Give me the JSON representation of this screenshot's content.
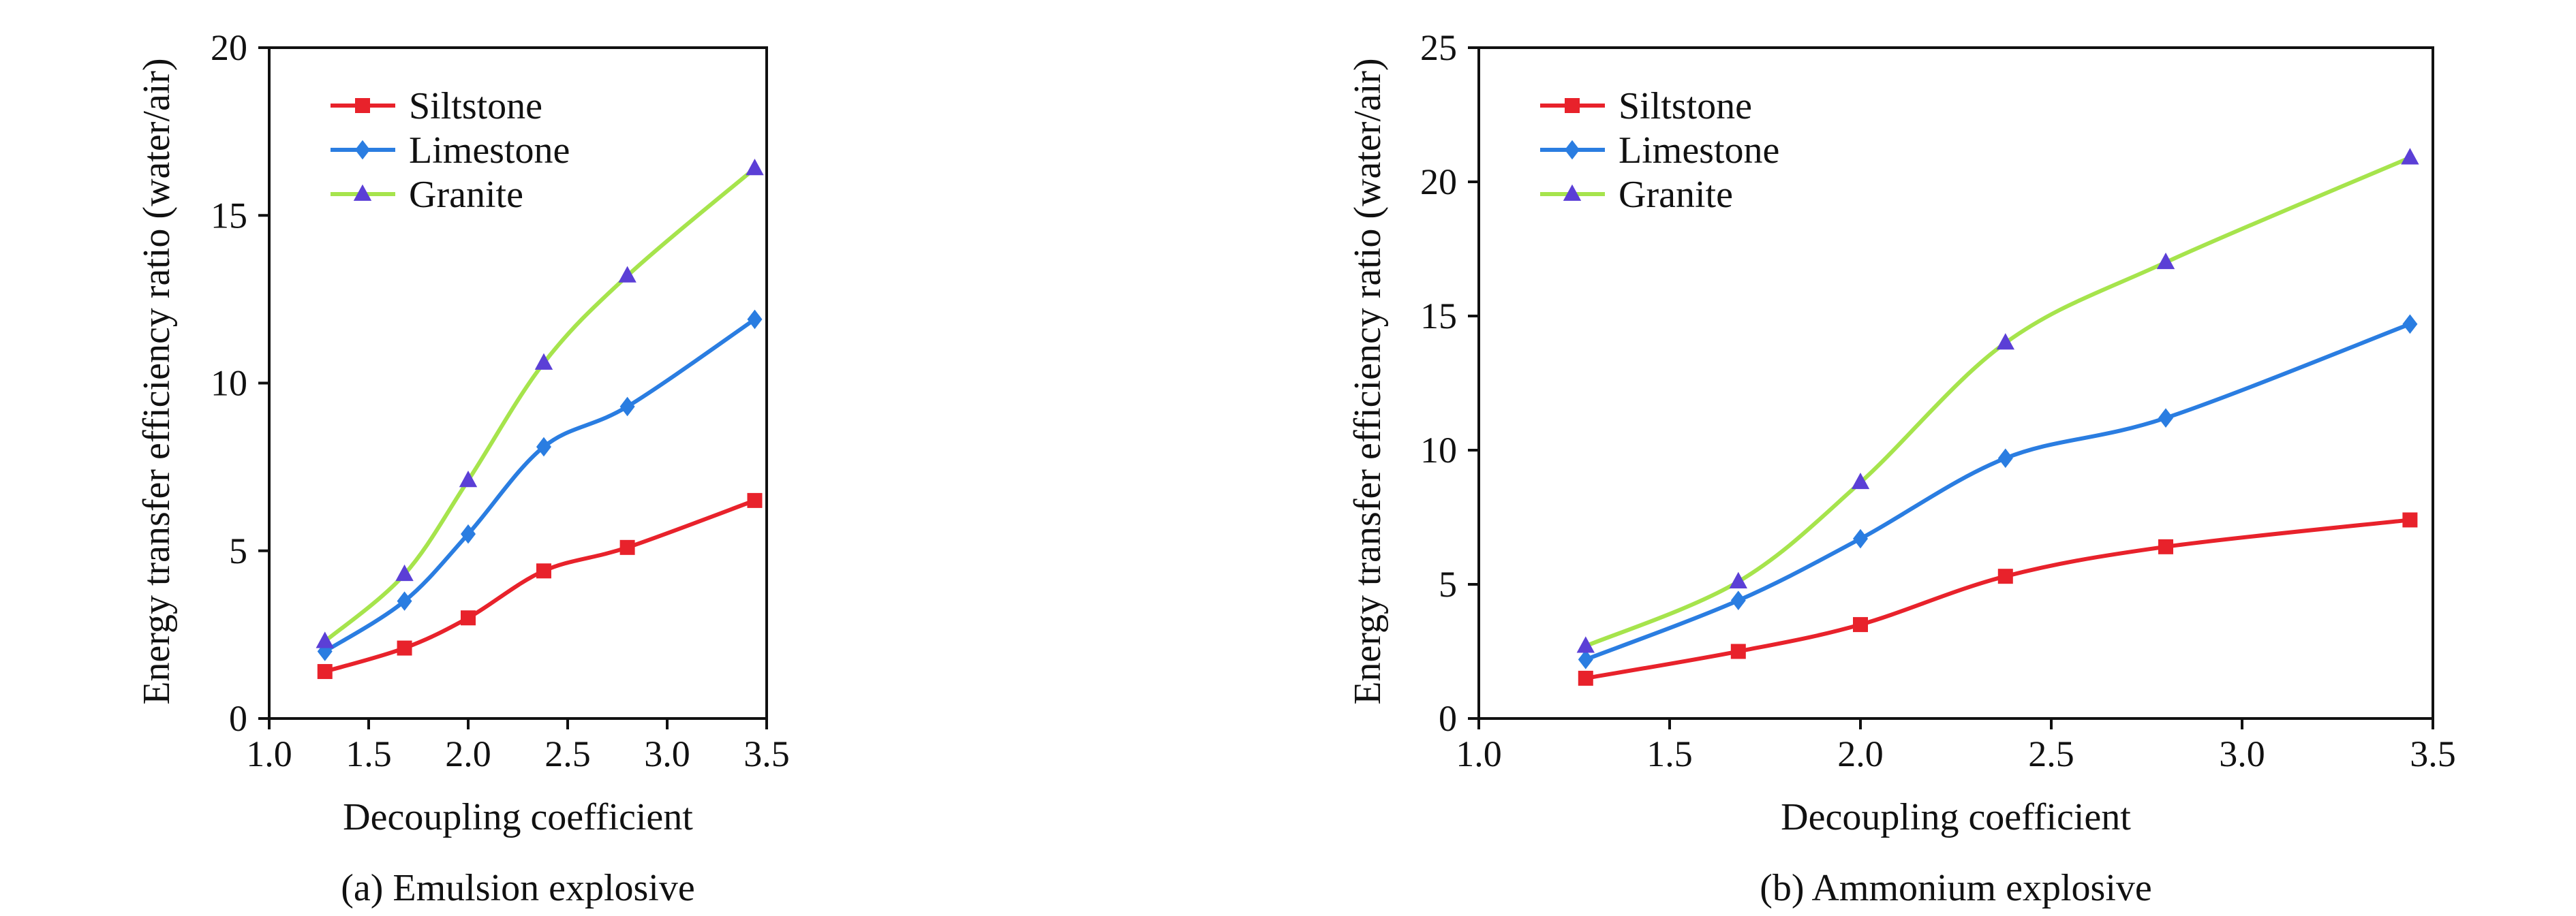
{
  "chart_data": [
    {
      "type": "line",
      "caption": "(a) Emulsion explosive",
      "xlabel": "Decoupling coefficient",
      "ylabel": "Energy transfer efficiency ratio (water/air)",
      "xlim": [
        1.0,
        3.5
      ],
      "ylim": [
        0,
        20
      ],
      "xticks": [
        "1.0",
        "1.5",
        "2.0",
        "2.5",
        "3.0",
        "3.5"
      ],
      "yticks": [
        "0",
        "5",
        "10",
        "15",
        "20"
      ],
      "grid": false,
      "legend_position": "top-left",
      "x": [
        1.28,
        1.68,
        2.0,
        2.38,
        2.8,
        3.44
      ],
      "series": [
        {
          "name": "Siltstone",
          "color": "#e8222b",
          "marker": "square",
          "values": [
            1.4,
            2.1,
            3.0,
            4.4,
            5.1,
            6.5
          ]
        },
        {
          "name": "Limestone",
          "color": "#2a7de1",
          "marker": "diamond",
          "values": [
            2.0,
            3.5,
            5.5,
            8.1,
            9.3,
            11.9
          ]
        },
        {
          "name": "Granite",
          "color": "#a6e44c",
          "marker": "triangle",
          "marker_color": "#5b3fd6",
          "values": [
            2.3,
            4.3,
            7.1,
            10.6,
            13.2,
            16.4
          ]
        }
      ]
    },
    {
      "type": "line",
      "caption": "(b) Ammonium explosive",
      "xlabel": "Decoupling coefficient",
      "ylabel": "Energy transfer efficiency ratio (water/air)",
      "xlim": [
        1.0,
        3.5
      ],
      "ylim": [
        0,
        25
      ],
      "xticks": [
        "1.0",
        "1.5",
        "2.0",
        "2.5",
        "3.0",
        "3.5"
      ],
      "yticks": [
        "0",
        "5",
        "10",
        "15",
        "20",
        "25"
      ],
      "grid": false,
      "legend_position": "top-left",
      "x": [
        1.28,
        1.68,
        2.0,
        2.38,
        2.8,
        3.44
      ],
      "series": [
        {
          "name": "Siltstone",
          "color": "#e8222b",
          "marker": "square",
          "values": [
            1.5,
            2.5,
            3.5,
            5.3,
            6.4,
            7.4
          ]
        },
        {
          "name": "Limestone",
          "color": "#2a7de1",
          "marker": "diamond",
          "values": [
            2.2,
            4.4,
            6.7,
            9.7,
            11.2,
            14.7
          ]
        },
        {
          "name": "Granite",
          "color": "#a6e44c",
          "marker": "triangle",
          "marker_color": "#5b3fd6",
          "values": [
            2.7,
            5.1,
            8.8,
            14.0,
            17.0,
            20.9
          ]
        }
      ]
    }
  ]
}
